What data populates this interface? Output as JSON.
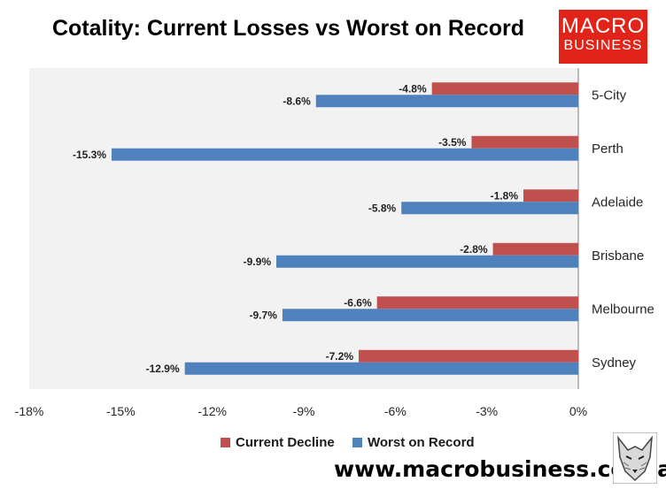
{
  "title": "Cotality: Current Losses vs Worst on Record",
  "logo": {
    "line1": "MACRO",
    "line2": "BUSINESS"
  },
  "website": "www.macrobusiness.com.au",
  "colors": {
    "current": "#c0504d",
    "worst": "#4f81bd",
    "plot_bg": "#f2f2f2"
  },
  "chart_data": {
    "type": "bar",
    "orientation": "horizontal",
    "categories": [
      "5-City",
      "Perth",
      "Adelaide",
      "Brisbane",
      "Melbourne",
      "Sydney"
    ],
    "series": [
      {
        "name": "Current Decline",
        "values": [
          -4.8,
          -3.5,
          -1.8,
          -2.8,
          -6.6,
          -7.2
        ],
        "labels": [
          "-4.8%",
          "-3.5%",
          "-1.8%",
          "-2.8%",
          "-6.6%",
          "-7.2%"
        ]
      },
      {
        "name": "Worst on Record",
        "values": [
          -8.6,
          -15.3,
          -5.8,
          -9.9,
          -9.7,
          -12.9
        ],
        "labels": [
          "-8.6%",
          "-15.3%",
          "-5.8%",
          "-9.9%",
          "-9.7%",
          "-12.9%"
        ]
      }
    ],
    "xlim": [
      -18,
      0
    ],
    "xticks": [
      "-18%",
      "-15%",
      "-12%",
      "-9%",
      "-6%",
      "-3%",
      "0%"
    ],
    "xtick_values": [
      -18,
      -15,
      -12,
      -9,
      -6,
      -3,
      0
    ],
    "category_axis_position": "right",
    "legend_position": "bottom",
    "grid": false
  }
}
